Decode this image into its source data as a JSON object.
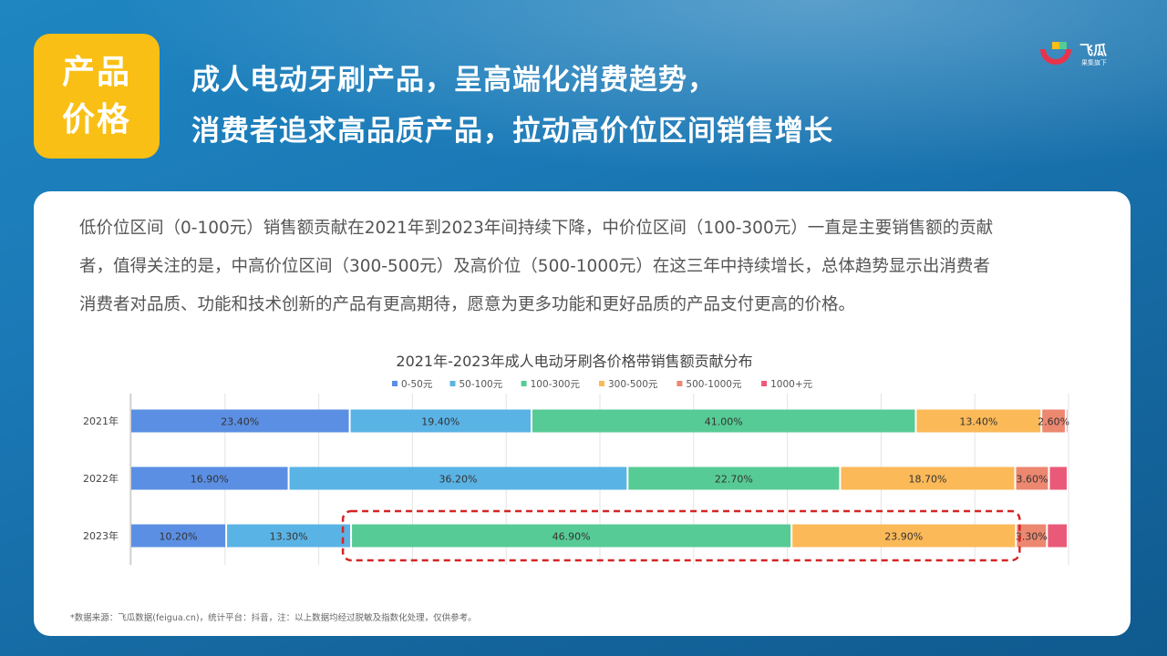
{
  "tag": {
    "line1": "产品",
    "line2": "价格"
  },
  "headline": {
    "line1": "成人电动牙刷产品，呈高端化消费趋势，",
    "line2": "消费者追求高品质产品，拉动高价位区间销售增长"
  },
  "logo": {
    "name": "飞瓜",
    "sub": "果集旗下"
  },
  "description": [
    "低价位区间（0-100元）销售额贡献在2021年到2023年间持续下降，中价位区间（100-300元）一直是主要销售额的贡献",
    "者，值得关注的是，中高价位区间（300-500元）及高价位（500-1000元）在这三年中持续增长，总体趋势显示出消费者",
    "消费者对品质、功能和技术创新的产品有更高期待，愿意为更多功能和更好品质的产品支付更高的价格。"
  ],
  "source": "*数据来源：飞瓜数据(feigua.cn)，统计平台：抖音，注：以上数据均经过脱敏及指数化处理，仅供参考。",
  "chart_data": {
    "type": "bar",
    "orientation": "horizontal",
    "stacked": "100%",
    "title": "2021年-2023年成人电动牙刷各价格带销售额贡献分布",
    "categories": [
      "2021年",
      "2022年",
      "2023年"
    ],
    "series": [
      {
        "name": "0-50元",
        "color": "#5b8fe3",
        "values": [
          23.4,
          16.9,
          10.2
        ],
        "labels": [
          "23.40%",
          "16.90%",
          "10.20%"
        ]
      },
      {
        "name": "50-100元",
        "color": "#5ab3e5",
        "values": [
          19.4,
          36.2,
          13.3
        ],
        "labels": [
          "19.40%",
          "36.20%",
          "13.30%"
        ]
      },
      {
        "name": "100-300元",
        "color": "#57cb95",
        "values": [
          41.0,
          22.7,
          46.9
        ],
        "labels": [
          "41.00%",
          "22.70%",
          "46.90%"
        ]
      },
      {
        "name": "300-500元",
        "color": "#fbb958",
        "values": [
          13.4,
          18.7,
          23.9
        ],
        "labels": [
          "13.40%",
          "18.70%",
          "23.90%"
        ]
      },
      {
        "name": "500-1000元",
        "color": "#ec8770",
        "values": [
          2.6,
          3.6,
          3.3
        ],
        "labels": [
          "2.60%",
          "3.60%",
          "3.30%"
        ]
      },
      {
        "name": "1000+元",
        "color": "#ea5a78",
        "values": [
          0.2,
          2.0,
          2.2
        ],
        "labels": [
          "",
          "",
          ""
        ]
      }
    ],
    "legend_position": "top",
    "grid": true,
    "highlight": {
      "category": "2023年",
      "series": [
        "100-300元",
        "300-500元"
      ],
      "color": "#d62424"
    }
  }
}
